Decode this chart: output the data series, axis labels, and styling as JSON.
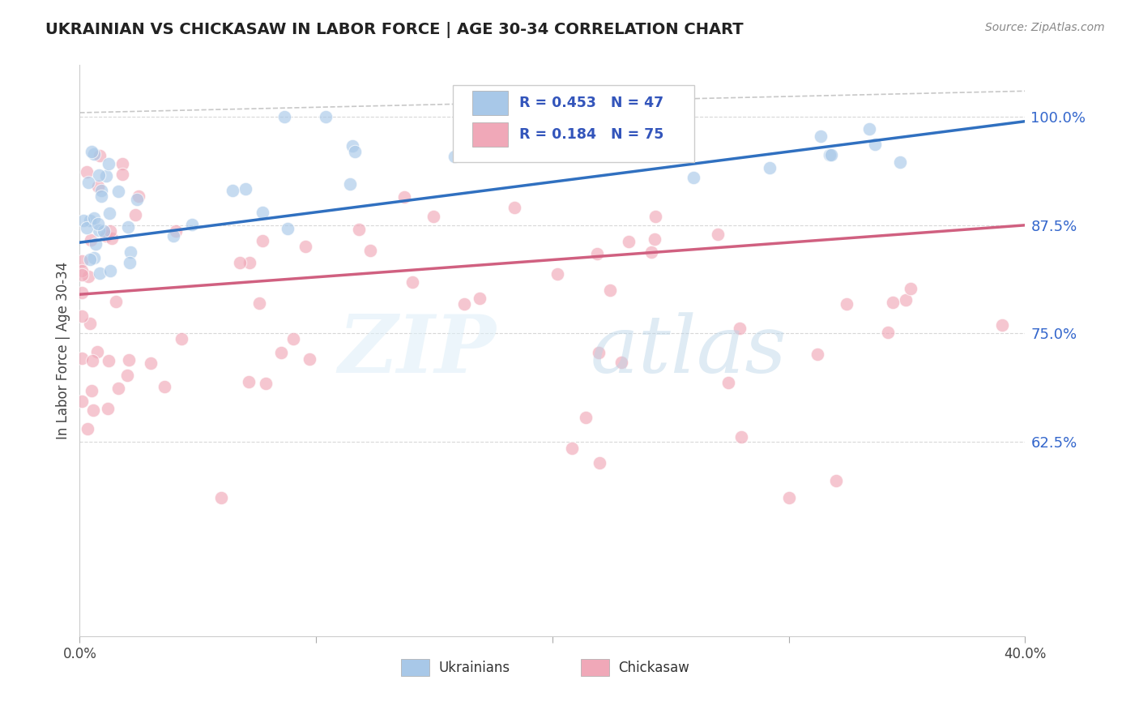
{
  "title": "UKRAINIAN VS CHICKASAW IN LABOR FORCE | AGE 30-34 CORRELATION CHART",
  "source": "Source: ZipAtlas.com",
  "ylabel": "In Labor Force | Age 30-34",
  "yticks": [
    0.625,
    0.75,
    0.875,
    1.0
  ],
  "ytick_labels": [
    "62.5%",
    "75.0%",
    "87.5%",
    "100.0%"
  ],
  "xlim": [
    0.0,
    0.4
  ],
  "ylim": [
    0.4,
    1.06
  ],
  "legend_r_ukrainian": "R = 0.453",
  "legend_n_ukrainian": "N = 47",
  "legend_r_chickasaw": "R = 0.184",
  "legend_n_chickasaw": "N = 75",
  "ukrainian_color": "#a8c8e8",
  "chickasaw_color": "#f0a8b8",
  "trend_ukrainian_color": "#3070c0",
  "trend_chickasaw_color": "#d06080",
  "background_color": "#ffffff",
  "scatter_alpha": 0.65,
  "scatter_size": 140,
  "uk_trend_x0": 0.0,
  "uk_trend_y0": 0.855,
  "uk_trend_x1": 0.4,
  "uk_trend_y1": 0.995,
  "ch_trend_x0": 0.0,
  "ch_trend_y0": 0.795,
  "ch_trend_x1": 0.4,
  "ch_trend_y1": 0.875
}
